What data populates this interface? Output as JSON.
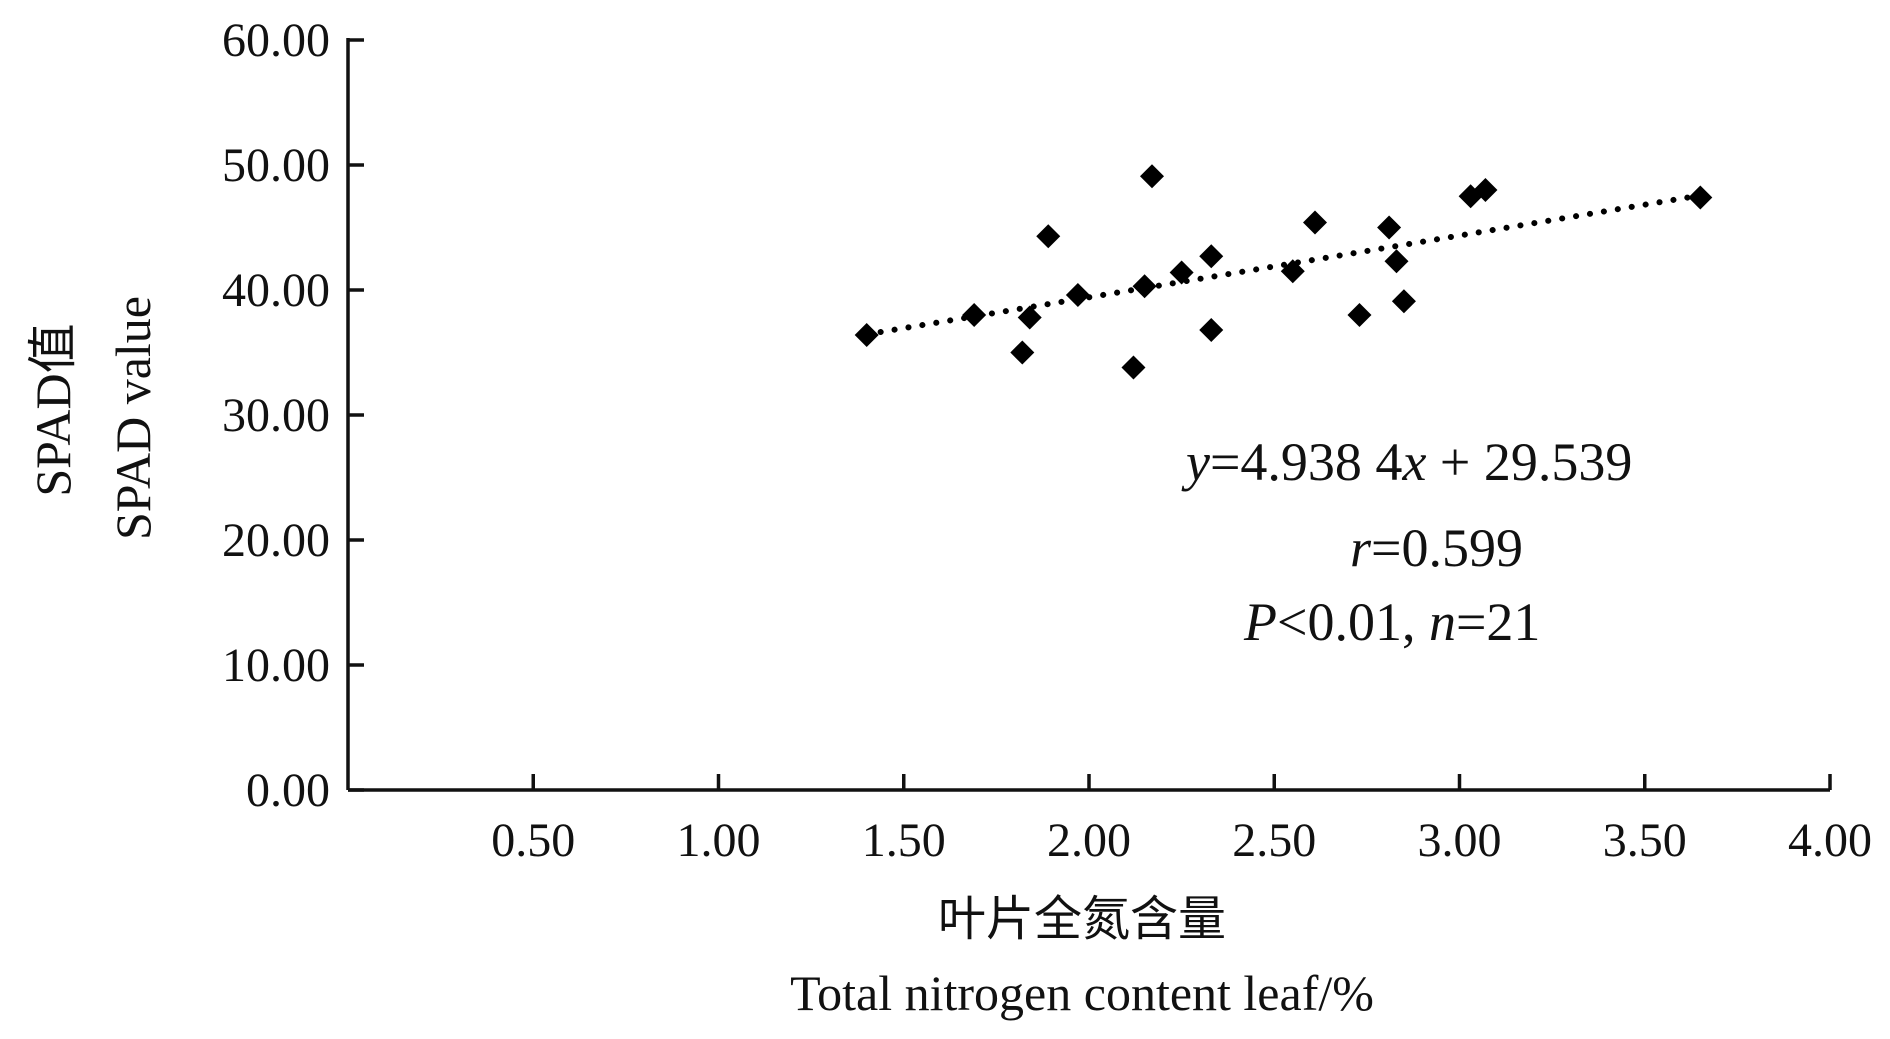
{
  "chart_data": {
    "type": "scatter",
    "title": "",
    "ylabel_cn": "SPAD值",
    "ylabel_en": "SPAD value",
    "xlabel_cn": "叶片全氮含量",
    "xlabel_en": "Total nitrogen content leaf/%",
    "xlim": [
      0,
      4
    ],
    "ylim": [
      0,
      60
    ],
    "x_ticks": [
      "0.50",
      "1.00",
      "1.50",
      "2.00",
      "2.50",
      "3.00",
      "3.50",
      "4.00"
    ],
    "x_tick_values": [
      0.5,
      1.0,
      1.5,
      2.0,
      2.5,
      3.0,
      3.5,
      4.0
    ],
    "y_ticks": [
      "0.00",
      "10.00",
      "20.00",
      "30.00",
      "40.00",
      "50.00",
      "60.00"
    ],
    "y_tick_values": [
      0,
      10,
      20,
      30,
      40,
      50,
      60
    ],
    "points": [
      {
        "x": 1.4,
        "y": 36.4
      },
      {
        "x": 1.69,
        "y": 38.0
      },
      {
        "x": 1.82,
        "y": 35.0
      },
      {
        "x": 1.84,
        "y": 37.8
      },
      {
        "x": 1.89,
        "y": 44.3
      },
      {
        "x": 1.97,
        "y": 39.6
      },
      {
        "x": 2.12,
        "y": 33.8
      },
      {
        "x": 2.15,
        "y": 40.3
      },
      {
        "x": 2.17,
        "y": 49.1
      },
      {
        "x": 2.25,
        "y": 41.4
      },
      {
        "x": 2.33,
        "y": 42.7
      },
      {
        "x": 2.33,
        "y": 36.8
      },
      {
        "x": 2.55,
        "y": 41.5
      },
      {
        "x": 2.61,
        "y": 45.4
      },
      {
        "x": 2.73,
        "y": 38.0
      },
      {
        "x": 2.81,
        "y": 45.0
      },
      {
        "x": 2.83,
        "y": 42.3
      },
      {
        "x": 2.85,
        "y": 39.1
      },
      {
        "x": 3.03,
        "y": 47.5
      },
      {
        "x": 3.07,
        "y": 48.0
      },
      {
        "x": 3.65,
        "y": 47.4
      }
    ],
    "trendline": {
      "slope": 4.9384,
      "intercept": 29.539,
      "x_start": 1.4,
      "x_end": 3.65
    },
    "annotation": {
      "equation": {
        "y": "y",
        "eq1": "=4.938 4",
        "x": "x",
        "eq2": " + 29.539"
      },
      "r_line": {
        "r": "r",
        "rest": "=0.599"
      },
      "p_line": {
        "p": "P",
        "mid": "<0.01, ",
        "n": "n",
        "rest": "=21"
      }
    },
    "grid": false,
    "legend": "none"
  }
}
